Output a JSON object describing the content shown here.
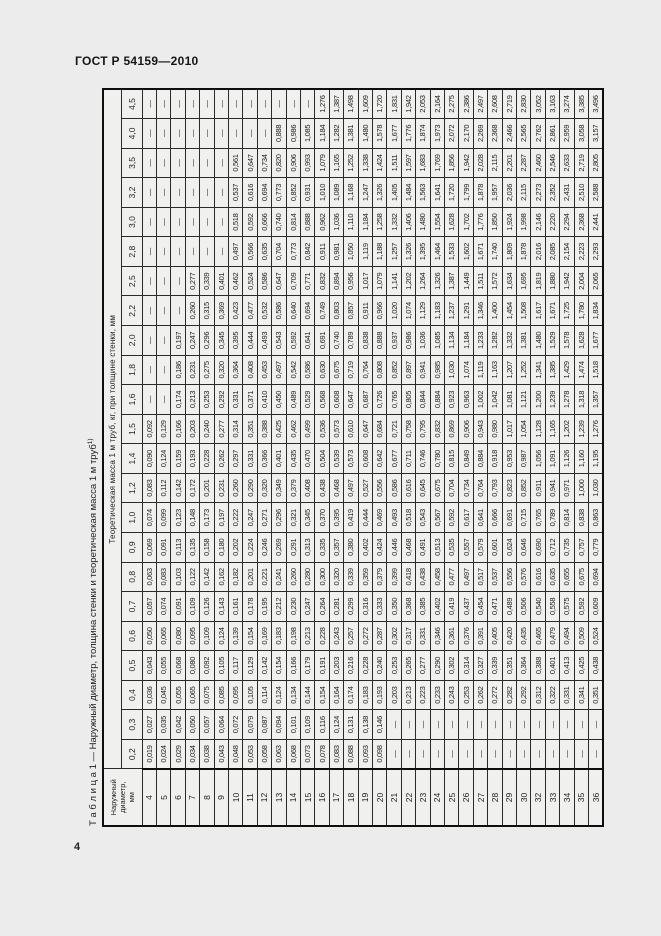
{
  "page": {
    "standard": "ГОСТ Р 54159—2010",
    "page_number": "4"
  },
  "table": {
    "title_label": "Т а б л и ц а  1",
    "title_text": "— Наружный диаметр, толщина стенки и теоретическая масса 1 м труб",
    "title_footnote": "1)",
    "corner_lines": [
      "Наружный",
      "диаметр,",
      "мм"
    ],
    "mass_header": "Теоретическая масса 1 м труб, кг, при толщине стенки, мм",
    "thickness_headers": [
      "0,2",
      "0,3",
      "0,4",
      "0,5",
      "0,6",
      "0,7",
      "0,8",
      "0,9",
      "1,0",
      "1,2",
      "1,4",
      "1,5",
      "1,6",
      "1,8",
      "2,0",
      "2,2",
      "2,5",
      "2,8",
      "3,0",
      "3,2",
      "3,5",
      "4,0",
      "4,5"
    ],
    "rows": [
      {
        "d": "4",
        "values": [
          "0,019",
          "0,027",
          "0,036",
          "0,043",
          "0,050",
          "0,057",
          "0,063",
          "0,069",
          "0,074",
          "0,083",
          "0,090",
          "0,092",
          "—",
          "—",
          "—",
          "—",
          "—",
          "—",
          "—",
          "—",
          "—",
          "—",
          "—"
        ]
      },
      {
        "d": "5",
        "values": [
          "0,024",
          "0,035",
          "0,045",
          "0,055",
          "0,065",
          "0,074",
          "0,083",
          "0,091",
          "0,099",
          "0,112",
          "0,124",
          "0,129",
          "—",
          "—",
          "—",
          "—",
          "—",
          "—",
          "—",
          "—",
          "—",
          "—",
          "—"
        ]
      },
      {
        "d": "6",
        "values": [
          "0,029",
          "0,042",
          "0,055",
          "0,068",
          "0,080",
          "0,091",
          "0,103",
          "0,113",
          "0,123",
          "0,142",
          "0,159",
          "0,166",
          "0,174",
          "0,186",
          "0,197",
          "—",
          "—",
          "—",
          "—",
          "—",
          "—",
          "—",
          "—"
        ]
      },
      {
        "d": "7",
        "values": [
          "0,034",
          "0,050",
          "0,065",
          "0,080",
          "0,095",
          "0,109",
          "0,122",
          "0,135",
          "0,148",
          "0,172",
          "0,193",
          "0,203",
          "0,213",
          "0,231",
          "0,247",
          "0,260",
          "0,277",
          "—",
          "—",
          "—",
          "—",
          "—",
          "—"
        ]
      },
      {
        "d": "8",
        "values": [
          "0,038",
          "0,057",
          "0,075",
          "0,092",
          "0,109",
          "0,126",
          "0,142",
          "0,158",
          "0,173",
          "0,201",
          "0,228",
          "0,240",
          "0,253",
          "0,275",
          "0,296",
          "0,315",
          "0,339",
          "—",
          "—",
          "—",
          "—",
          "—",
          "—"
        ]
      },
      {
        "d": "9",
        "values": [
          "0,043",
          "0,064",
          "0,085",
          "0,105",
          "0,124",
          "0,143",
          "0,162",
          "0,180",
          "0,197",
          "0,231",
          "0,262",
          "0,277",
          "0,292",
          "0,320",
          "0,345",
          "0,369",
          "0,401",
          "—",
          "—",
          "—",
          "—",
          "—",
          "—"
        ]
      },
      {
        "d": "10",
        "values": [
          "0,048",
          "0,072",
          "0,095",
          "0,117",
          "0,139",
          "0,161",
          "0,182",
          "0,202",
          "0,222",
          "0,260",
          "0,297",
          "0,314",
          "0,331",
          "0,364",
          "0,395",
          "0,423",
          "0,462",
          "0,497",
          "0,518",
          "0,537",
          "0,561",
          "—",
          "—"
        ]
      },
      {
        "d": "11",
        "values": [
          "0,053",
          "0,079",
          "0,105",
          "0,129",
          "0,154",
          "0,178",
          "0,201",
          "0,224",
          "0,247",
          "0,290",
          "0,331",
          "0,351",
          "0,371",
          "0,408",
          "0,444",
          "0,477",
          "0,524",
          "0,566",
          "0,592",
          "0,616",
          "0,647",
          "—",
          "—"
        ]
      },
      {
        "d": "12",
        "values": [
          "0,058",
          "0,087",
          "0,114",
          "0,142",
          "0,169",
          "0,195",
          "0,221",
          "0,246",
          "0,271",
          "0,320",
          "0,366",
          "0,388",
          "0,410",
          "0,453",
          "0,493",
          "0,532",
          "0,586",
          "0,635",
          "0,666",
          "0,694",
          "0,734",
          "—",
          "—"
        ]
      },
      {
        "d": "13",
        "values": [
          "0,063",
          "0,094",
          "0,124",
          "0,154",
          "0,183",
          "0,212",
          "0,241",
          "0,269",
          "0,296",
          "0,349",
          "0,401",
          "0,425",
          "0,450",
          "0,497",
          "0,543",
          "0,586",
          "0,647",
          "0,704",
          "0,740",
          "0,773",
          "0,820",
          "0,888",
          "—"
        ]
      },
      {
        "d": "14",
        "values": [
          "0,068",
          "0,101",
          "0,134",
          "0,166",
          "0,198",
          "0,230",
          "0,260",
          "0,291",
          "0,321",
          "0,379",
          "0,435",
          "0,462",
          "0,489",
          "0,542",
          "0,592",
          "0,640",
          "0,709",
          "0,773",
          "0,814",
          "0,852",
          "0,906",
          "0,986",
          "—"
        ]
      },
      {
        "d": "15",
        "values": [
          "0,073",
          "0,109",
          "0,144",
          "0,179",
          "0,213",
          "0,247",
          "0,280",
          "0,313",
          "0,345",
          "0,408",
          "0,470",
          "0,499",
          "0,529",
          "0,586",
          "0,641",
          "0,694",
          "0,771",
          "0,842",
          "0,888",
          "0,931",
          "0,993",
          "1,085",
          "—"
        ]
      },
      {
        "d": "16",
        "values": [
          "0,078",
          "0,116",
          "0,154",
          "0,191",
          "0,228",
          "0,264",
          "0,300",
          "0,335",
          "0,370",
          "0,438",
          "0,504",
          "0,536",
          "0,568",
          "0,630",
          "0,691",
          "0,749",
          "0,832",
          "0,911",
          "0,962",
          "1,010",
          "1,079",
          "1,184",
          "1,276"
        ]
      },
      {
        "d": "17",
        "values": [
          "0,083",
          "0,124",
          "0,164",
          "0,203",
          "0,243",
          "0,281",
          "0,320",
          "0,357",
          "0,395",
          "0,468",
          "0,539",
          "0,573",
          "0,608",
          "0,675",
          "0,740",
          "0,803",
          "0,894",
          "0,981",
          "1,036",
          "1,089",
          "1,165",
          "1,282",
          "1,387"
        ]
      },
      {
        "d": "18",
        "values": [
          "0,088",
          "0,131",
          "0,174",
          "0,216",
          "0,257",
          "0,299",
          "0,339",
          "0,380",
          "0,419",
          "0,497",
          "0,573",
          "0,610",
          "0,647",
          "0,719",
          "0,789",
          "0,857",
          "0,956",
          "1,050",
          "1,110",
          "1,168",
          "1,252",
          "1,381",
          "1,498"
        ]
      },
      {
        "d": "19",
        "values": [
          "0,093",
          "0,138",
          "0,183",
          "0,228",
          "0,272",
          "0,316",
          "0,359",
          "0,402",
          "0,444",
          "0,527",
          "0,608",
          "0,647",
          "0,687",
          "0,764",
          "0,838",
          "0,911",
          "1,017",
          "1,119",
          "1,184",
          "1,247",
          "1,338",
          "1,480",
          "1,609"
        ]
      },
      {
        "d": "20",
        "values": [
          "0,098",
          "0,146",
          "0,193",
          "0,240",
          "0,287",
          "0,333",
          "0,379",
          "0,424",
          "0,469",
          "0,556",
          "0,642",
          "0,684",
          "0,726",
          "0,808",
          "0,888",
          "0,966",
          "1,079",
          "1,188",
          "1,258",
          "1,326",
          "1,424",
          "1,578",
          "1,720"
        ]
      },
      {
        "d": "21",
        "values": [
          "—",
          "—",
          "0,203",
          "0,253",
          "0,302",
          "0,350",
          "0,399",
          "0,446",
          "0,493",
          "0,586",
          "0,677",
          "0,721",
          "0,765",
          "0,852",
          "0,937",
          "1,020",
          "1,141",
          "1,257",
          "1,332",
          "1,405",
          "1,511",
          "1,677",
          "1,831"
        ]
      },
      {
        "d": "22",
        "values": [
          "—",
          "—",
          "0,213",
          "0,265",
          "0,317",
          "0,368",
          "0,418",
          "0,468",
          "0,518",
          "0,616",
          "0,711",
          "0,758",
          "0,805",
          "0,897",
          "0,986",
          "1,074",
          "1,202",
          "1,326",
          "1,406",
          "1,484",
          "1,597",
          "1,776",
          "1,942"
        ]
      },
      {
        "d": "23",
        "values": [
          "—",
          "—",
          "0,223",
          "0,277",
          "0,331",
          "0,385",
          "0,438",
          "0,491",
          "0,543",
          "0,645",
          "0,746",
          "0,795",
          "0,844",
          "0,941",
          "1,036",
          "1,129",
          "1,264",
          "1,395",
          "1,480",
          "1,563",
          "1,683",
          "1,874",
          "2,053"
        ]
      },
      {
        "d": "24",
        "values": [
          "—",
          "—",
          "0,233",
          "0,290",
          "0,346",
          "0,402",
          "0,458",
          "0,513",
          "0,567",
          "0,675",
          "0,780",
          "0,832",
          "0,884",
          "0,985",
          "1,085",
          "1,183",
          "1,326",
          "1,464",
          "1,554",
          "1,641",
          "1,769",
          "1,973",
          "2,164"
        ]
      },
      {
        "d": "25",
        "values": [
          "—",
          "—",
          "0,243",
          "0,302",
          "0,361",
          "0,419",
          "0,477",
          "0,535",
          "0,592",
          "0,704",
          "0,815",
          "0,869",
          "0,923",
          "1,030",
          "1,134",
          "1,237",
          "1,387",
          "1,533",
          "1,628",
          "1,720",
          "1,856",
          "2,072",
          "2,275"
        ]
      },
      {
        "d": "26",
        "values": [
          "—",
          "—",
          "0,253",
          "0,314",
          "0,376",
          "0,437",
          "0,497",
          "0,557",
          "0,617",
          "0,734",
          "0,849",
          "0,906",
          "0,963",
          "1,074",
          "1,184",
          "1,291",
          "1,449",
          "1,602",
          "1,702",
          "1,799",
          "1,942",
          "2,170",
          "2,386"
        ]
      },
      {
        "d": "27",
        "values": [
          "—",
          "—",
          "0,262",
          "0,327",
          "0,391",
          "0,454",
          "0,517",
          "0,579",
          "0,641",
          "0,764",
          "0,884",
          "0,943",
          "1,002",
          "1,119",
          "1,233",
          "1,346",
          "1,511",
          "1,671",
          "1,776",
          "1,878",
          "2,028",
          "2,269",
          "2,497"
        ]
      },
      {
        "d": "28",
        "values": [
          "—",
          "—",
          "0,272",
          "0,339",
          "0,405",
          "0,471",
          "0,537",
          "0,601",
          "0,666",
          "0,793",
          "0,918",
          "0,980",
          "1,042",
          "1,163",
          "1,282",
          "1,400",
          "1,572",
          "1,740",
          "1,850",
          "1,957",
          "2,115",
          "2,368",
          "2,608"
        ]
      },
      {
        "d": "29",
        "values": [
          "—",
          "—",
          "0,282",
          "0,351",
          "0,420",
          "0,489",
          "0,556",
          "0,624",
          "0,691",
          "0,823",
          "0,953",
          "1,017",
          "1,081",
          "1,207",
          "1,332",
          "1,454",
          "1,634",
          "1,809",
          "1,924",
          "2,036",
          "2,201",
          "2,466",
          "2,719"
        ]
      },
      {
        "d": "30",
        "values": [
          "—",
          "—",
          "0,292",
          "0,364",
          "0,435",
          "0,506",
          "0,576",
          "0,646",
          "0,715",
          "0,852",
          "0,987",
          "1,054",
          "1,121",
          "1,252",
          "1,381",
          "1,508",
          "1,695",
          "1,878",
          "1,998",
          "2,115",
          "2,287",
          "2,565",
          "2,830"
        ]
      },
      {
        "d": "32",
        "values": [
          "—",
          "—",
          "0,312",
          "0,388",
          "0,465",
          "0,540",
          "0,616",
          "0,690",
          "0,765",
          "0,911",
          "1,056",
          "1,128",
          "1,200",
          "1,341",
          "1,480",
          "1,617",
          "1,819",
          "2,016",
          "2,146",
          "2,273",
          "2,460",
          "2,762",
          "3,052"
        ]
      },
      {
        "d": "33",
        "values": [
          "—",
          "—",
          "0,322",
          "0,401",
          "0,479",
          "0,558",
          "0,635",
          "0,712",
          "0,789",
          "0,941",
          "1,091",
          "1,165",
          "1,239",
          "1,385",
          "1,529",
          "1,671",
          "1,880",
          "2,085",
          "2,220",
          "2,352",
          "2,546",
          "2,861",
          "3,163"
        ]
      },
      {
        "d": "34",
        "values": [
          "—",
          "—",
          "0,331",
          "0,413",
          "0,494",
          "0,575",
          "0,655",
          "0,735",
          "0,814",
          "0,971",
          "1,126",
          "1,202",
          "1,278",
          "1,429",
          "1,578",
          "1,725",
          "1,942",
          "2,154",
          "2,294",
          "2,431",
          "2,633",
          "2,959",
          "3,274"
        ]
      },
      {
        "d": "35",
        "values": [
          "—",
          "—",
          "0,341",
          "0,425",
          "0,509",
          "0,592",
          "0,675",
          "0,757",
          "0,838",
          "1,000",
          "1,160",
          "1,239",
          "1,318",
          "1,474",
          "1,628",
          "1,780",
          "2,004",
          "2,223",
          "2,368",
          "2,510",
          "2,719",
          "3,058",
          "3,385"
        ]
      },
      {
        "d": "36",
        "values": [
          "—",
          "—",
          "0,351",
          "0,438",
          "0,524",
          "0,609",
          "0,694",
          "0,779",
          "0,863",
          "1,030",
          "1,195",
          "1,276",
          "1,357",
          "1,518",
          "1,677",
          "1,834",
          "2,065",
          "2,293",
          "2,441",
          "2,588",
          "2,805",
          "3,157",
          "3,496"
        ]
      }
    ]
  }
}
